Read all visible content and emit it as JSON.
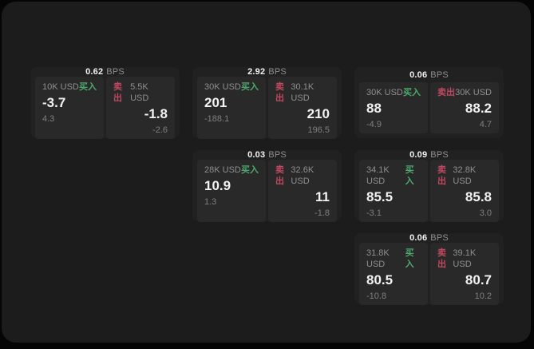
{
  "labels": {
    "unit": "BPS",
    "buy": "买入",
    "sell": "卖出"
  },
  "colors": {
    "outer_bg": "#050505",
    "window_bg": "#1c1c1c",
    "card_bg": "#212121",
    "panel_bg": "#292929",
    "buy_green": "#4caa6d",
    "sell_red": "#c0485f",
    "primary_text": "#f2f2f2",
    "muted_text": "#8f8f8f"
  },
  "cards": [
    {
      "bps": "0.62",
      "row": 0,
      "col": 0,
      "buy": {
        "amount": "10K USD",
        "price": "-3.7",
        "delta": "4.3"
      },
      "sell": {
        "amount": "5.5K USD",
        "price": "-1.8",
        "delta": "-2.6"
      }
    },
    {
      "bps": "2.92",
      "row": 0,
      "col": 1,
      "buy": {
        "amount": "30K USD",
        "price": "201",
        "delta": "-188.1"
      },
      "sell": {
        "amount": "30.1K USD",
        "price": "210",
        "delta": "196.5"
      }
    },
    {
      "bps": "0.06",
      "row": 0,
      "col": 2,
      "buy": {
        "amount": "30K USD",
        "price": "88",
        "delta": "-4.9"
      },
      "sell": {
        "amount": "30K USD",
        "price": "88.2",
        "delta": "4.7"
      }
    },
    {
      "bps": "0.03",
      "row": 1,
      "col": 1,
      "buy": {
        "amount": "28K USD",
        "price": "10.9",
        "delta": "1.3"
      },
      "sell": {
        "amount": "32.6K USD",
        "price": "11",
        "delta": "-1.8"
      }
    },
    {
      "bps": "0.09",
      "row": 1,
      "col": 2,
      "buy": {
        "amount": "34.1K USD",
        "price": "85.5",
        "delta": "-3.1"
      },
      "sell": {
        "amount": "32.8K USD",
        "price": "85.8",
        "delta": "3.0"
      }
    },
    {
      "bps": "0.06",
      "row": 2,
      "col": 2,
      "buy": {
        "amount": "31.8K USD",
        "price": "80.5",
        "delta": "-10.8"
      },
      "sell": {
        "amount": "39.1K USD",
        "price": "80.7",
        "delta": "10.2"
      }
    }
  ]
}
